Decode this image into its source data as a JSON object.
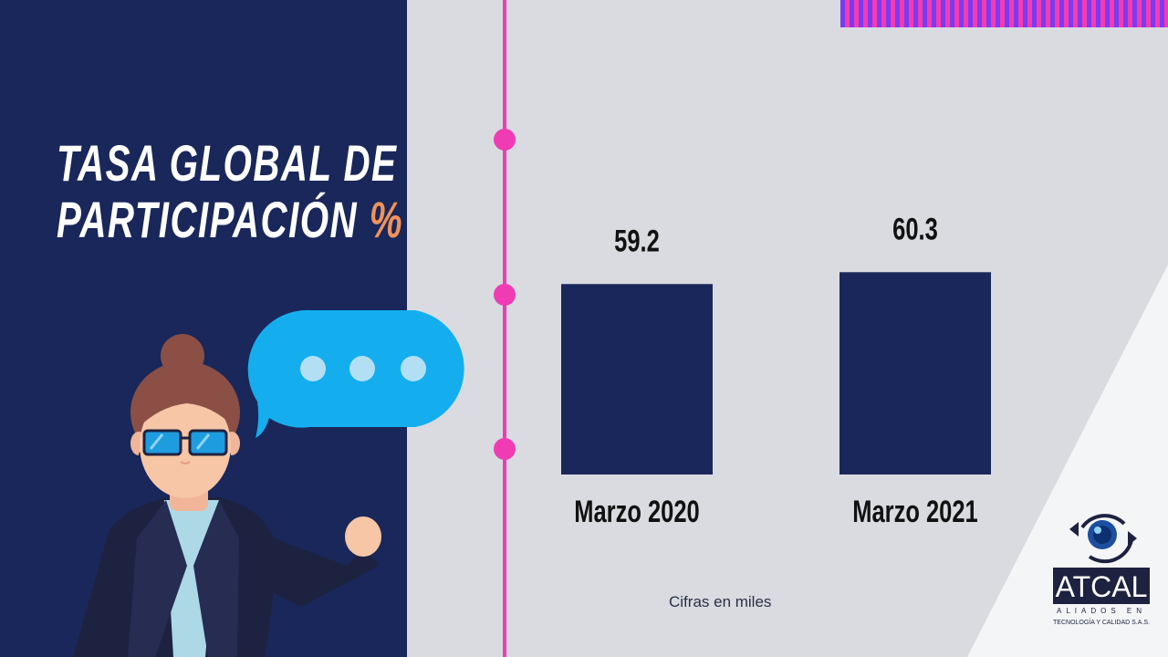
{
  "title": {
    "line1": "TASA GLOBAL DE",
    "line2": "PARTICIPACIÓN",
    "accent": "%"
  },
  "chart_data": {
    "type": "bar",
    "categories": [
      "Marzo 2020",
      "Marzo 2021"
    ],
    "values": [
      59.2,
      60.3
    ],
    "data_labels": [
      "59.2",
      "60.3"
    ],
    "title": "TASA GLOBAL DE PARTICIPACIÓN %",
    "xlabel": "",
    "ylabel": "",
    "grid": false,
    "bar_color": "#19275a"
  },
  "footnote": "Cifras en miles",
  "logo": {
    "name": "ATCAL",
    "tagline1": "ALIADOS EN",
    "tagline2": "TECNOLOGÍA Y CALIDAD S.A.S."
  },
  "colors": {
    "navy": "#19275a",
    "pink": "#f03cb4",
    "orange_accent": "#f0925a",
    "bubble_blue": "#14aeef",
    "background": "#d9dbe0"
  }
}
